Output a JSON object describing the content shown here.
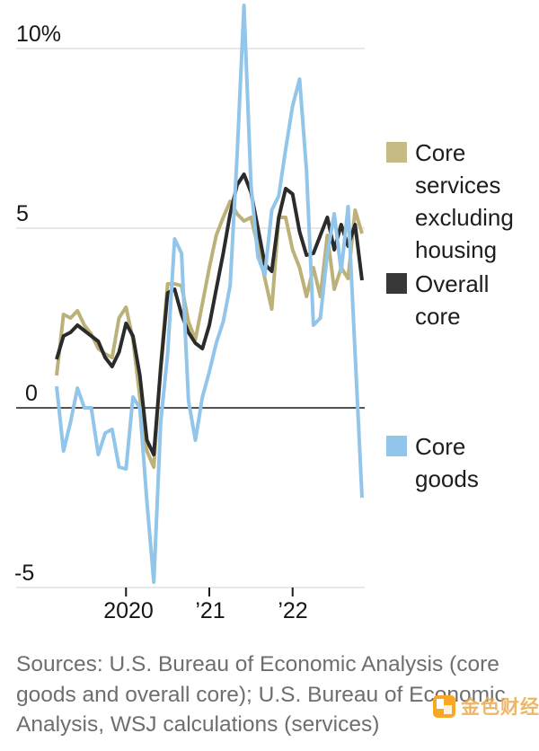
{
  "chart_data": {
    "type": "line",
    "title": "",
    "unit": "%",
    "grid": "horizontal",
    "legend_position": "right",
    "x": [
      "Mar 2019",
      "Apr 2019",
      "May 2019",
      "Jun 2019",
      "Jul 2019",
      "Aug 2019",
      "Sep 2019",
      "Oct 2019",
      "Nov 2019",
      "Dec 2019",
      "Jan 2020",
      "Feb 2020",
      "Mar 2020",
      "Apr 2020",
      "May 2020",
      "Jun 2020",
      "Jul 2020",
      "Aug 2020",
      "Sep 2020",
      "Oct 2020",
      "Nov 2020",
      "Dec 2020",
      "Jan 2021",
      "Feb 2021",
      "Mar 2021",
      "Apr 2021",
      "May 2021",
      "Jun 2021",
      "Jul 2021",
      "Aug 2021",
      "Sep 2021",
      "Oct 2021",
      "Nov 2021",
      "Dec 2021",
      "Jan 2022",
      "Feb 2022",
      "Mar 2022",
      "Apr 2022",
      "May 2022",
      "Jun 2022",
      "Jul 2022",
      "Aug 2022",
      "Sep 2022",
      "Oct 2022",
      "Nov 2022"
    ],
    "x_tick_labels": [
      {
        "index": 10,
        "label": "2020"
      },
      {
        "index": 22,
        "label": "’21"
      },
      {
        "index": 34,
        "label": "’22"
      }
    ],
    "y_axis": {
      "labels": [
        "10%",
        "5",
        "0",
        "-5"
      ],
      "values": [
        10,
        5,
        0,
        -5
      ]
    },
    "ylim": [
      -5.2,
      11.5
    ],
    "series": [
      {
        "name": "Core services excluding housing",
        "color": "#bcb279",
        "values": [
          0.9,
          2.6,
          2.5,
          2.7,
          2.3,
          2.05,
          1.65,
          1.5,
          1.4,
          2.5,
          2.8,
          1.9,
          0.3,
          -1.2,
          -1.65,
          1.2,
          3.45,
          3.45,
          3.4,
          2.4,
          1.9,
          2.9,
          3.9,
          4.8,
          5.3,
          5.75,
          5.4,
          5.2,
          5.3,
          4.5,
          3.6,
          2.75,
          5.3,
          5.3,
          4.4,
          3.9,
          3.1,
          3.9,
          3.1,
          4.8,
          3.3,
          3.9,
          3.6,
          5.5,
          4.85
        ]
      },
      {
        "name": "Overall core",
        "color": "#2b2b2b",
        "values": [
          1.35,
          2.0,
          2.1,
          2.3,
          2.15,
          2.0,
          1.85,
          1.4,
          1.15,
          1.55,
          2.35,
          2.0,
          0.9,
          -0.9,
          -1.3,
          1.1,
          3.2,
          3.3,
          2.6,
          2.1,
          1.8,
          1.65,
          2.3,
          3.3,
          4.3,
          5.4,
          6.2,
          6.5,
          6.0,
          5.0,
          4.0,
          3.8,
          5.3,
          6.1,
          5.95,
          4.9,
          4.25,
          4.3,
          4.8,
          5.3,
          4.4,
          5.1,
          4.5,
          5.1,
          3.55
        ]
      },
      {
        "name": "Core goods",
        "color": "#92c5ea",
        "values": [
          0.6,
          -1.2,
          -0.4,
          0.55,
          0.0,
          0.0,
          -1.3,
          -0.7,
          -0.6,
          -1.65,
          -1.7,
          0.3,
          0.0,
          -2.6,
          -4.85,
          -0.4,
          1.5,
          4.7,
          4.3,
          0.2,
          -0.9,
          0.3,
          1.0,
          1.8,
          2.4,
          3.4,
          7.0,
          11.2,
          6.2,
          4.2,
          3.7,
          5.5,
          5.9,
          7.2,
          8.4,
          9.15,
          6.6,
          2.3,
          2.5,
          4.3,
          5.4,
          3.8,
          5.6,
          1.5,
          -2.5
        ]
      }
    ]
  },
  "axis": {
    "y_labels": [
      "10%",
      "5",
      "0",
      "-5"
    ],
    "x_labels": [
      "2020",
      "’21",
      "’22"
    ]
  },
  "legend": {
    "items": [
      {
        "label": "Core services excluding housing",
        "color": "#c6bb85"
      },
      {
        "label": "Overall core",
        "color": "#383838"
      },
      {
        "label": "Core goods",
        "color": "#92c5ea"
      }
    ]
  },
  "source": {
    "text": "Sources: U.S. Bureau of Economic Analysis (core goods and overall core); U.S. Bureau of Economic Analysis, WSJ calculations (services)"
  },
  "watermark": {
    "text": "金色财经"
  }
}
